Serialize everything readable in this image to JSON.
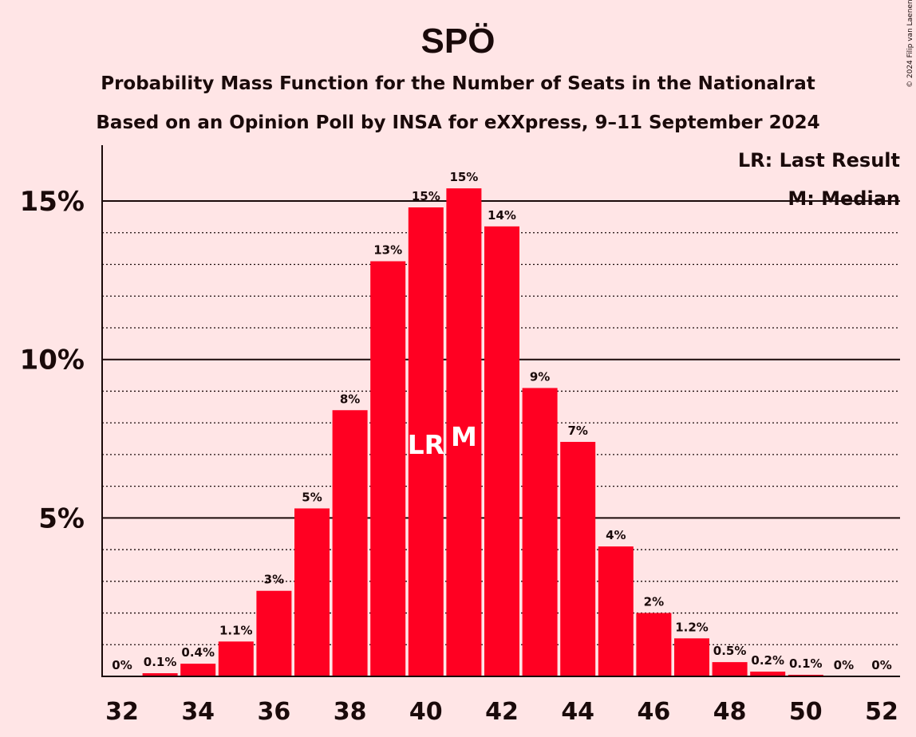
{
  "chart_data": {
    "type": "bar",
    "title": "SPÖ",
    "subtitle_lines": [
      "Probability Mass Function for the Number of Seats in the Nationalrat",
      "Based on an Opinion Poll by INSA for eXXpress, 9–11 September 2024"
    ],
    "copyright": "© 2024 Filip van Laenen",
    "legend": [
      "LR: Last Result",
      "M: Median"
    ],
    "legend_position": "top-right",
    "x": [
      32,
      33,
      34,
      35,
      36,
      37,
      38,
      39,
      40,
      41,
      42,
      43,
      44,
      45,
      46,
      47,
      48,
      49,
      50,
      51,
      52
    ],
    "values": [
      0,
      0.1,
      0.4,
      1.1,
      2.7,
      5.3,
      8.4,
      13.1,
      14.8,
      15.4,
      14.2,
      9.1,
      7.4,
      4.1,
      2.0,
      1.2,
      0.45,
      0.15,
      0.05,
      0,
      0
    ],
    "data_labels": [
      "0%",
      "0.1%",
      "0.4%",
      "1.1%",
      "3%",
      "5%",
      "8%",
      "13%",
      "15%",
      "15%",
      "14%",
      "9%",
      "7%",
      "4%",
      "2%",
      "1.2%",
      "0.5%",
      "0.2%",
      "0.1%",
      "0%",
      "0%"
    ],
    "x_tick_labels": [
      "32",
      "34",
      "36",
      "38",
      "40",
      "42",
      "44",
      "46",
      "48",
      "50",
      "52"
    ],
    "y_ticks": [
      {
        "value": 5,
        "label": "5%"
      },
      {
        "value": 10,
        "label": "10%"
      },
      {
        "value": 15,
        "label": "15%"
      }
    ],
    "ylim": [
      0,
      16.5
    ],
    "minor_gridlines": true,
    "last_result_seat": 40,
    "last_result_marker": "LR",
    "median_seat": 41,
    "median_marker": "M",
    "bar_color": "#ff0022",
    "background_color": "#ffe5e6"
  }
}
